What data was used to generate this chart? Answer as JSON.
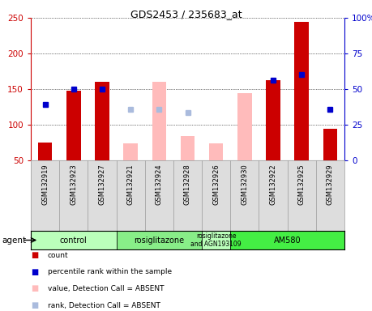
{
  "title": "GDS2453 / 235683_at",
  "samples": [
    "GSM132919",
    "GSM132923",
    "GSM132927",
    "GSM132921",
    "GSM132924",
    "GSM132928",
    "GSM132926",
    "GSM132930",
    "GSM132922",
    "GSM132925",
    "GSM132929"
  ],
  "agents": [
    {
      "label": "control",
      "start": 0,
      "end": 3,
      "color": "#bbffbb"
    },
    {
      "label": "rosiglitazone",
      "start": 3,
      "end": 6,
      "color": "#88ee88"
    },
    {
      "label": "rosiglitazone\nand AGN193109",
      "start": 6,
      "end": 7,
      "color": "#bbffbb"
    },
    {
      "label": "AM580",
      "start": 7,
      "end": 11,
      "color": "#44ee44"
    }
  ],
  "count_present": [
    75,
    148,
    160,
    null,
    null,
    null,
    null,
    null,
    163,
    244,
    94
  ],
  "count_absent": [
    null,
    null,
    null,
    74,
    160,
    84,
    74,
    144,
    null,
    null,
    null
  ],
  "rank_present": [
    128,
    150,
    150,
    null,
    null,
    null,
    null,
    null,
    163,
    170,
    122
  ],
  "rank_absent": [
    null,
    null,
    null,
    122,
    122,
    117,
    null,
    null,
    null,
    null,
    null
  ],
  "ylim_left": [
    50,
    250
  ],
  "yticks_left": [
    50,
    100,
    150,
    200,
    250
  ],
  "yticks_right": [
    0,
    25,
    50,
    75,
    100
  ],
  "ytick_labels_right": [
    "0",
    "25",
    "50",
    "75",
    "100%"
  ],
  "bar_width": 0.5,
  "bar_color_present": "#cc0000",
  "bar_color_absent": "#ffbbbb",
  "dot_color_present": "#0000cc",
  "dot_color_absent": "#aabbdd",
  "left_axis_color": "#cc0000",
  "right_axis_color": "#0000cc"
}
